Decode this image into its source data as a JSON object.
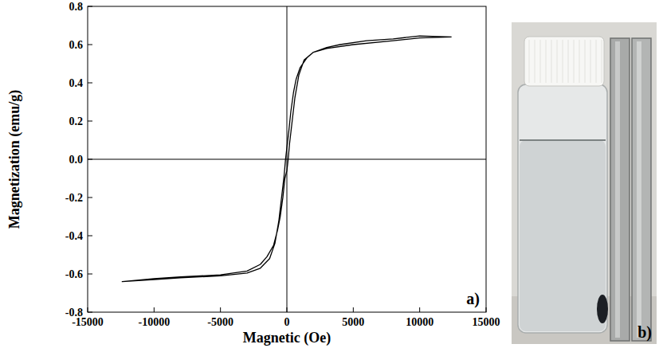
{
  "chart_data": {
    "type": "line",
    "x_label": "Magnetic (Oe)",
    "y_label": "Magnetization (emu/g)",
    "color": "#000000",
    "x": [
      12400,
      10000,
      8000,
      6000,
      4000,
      3000,
      2000,
      1500,
      1000,
      700,
      500,
      300,
      150,
      0,
      -100,
      -200,
      -400,
      -600,
      -900,
      -1300,
      -2000,
      -3000,
      -5000,
      -8000,
      -10000,
      -12400,
      -12400,
      -10000,
      -8000,
      -5000,
      -3000,
      -2000,
      -1500,
      -1000,
      -700,
      -500,
      -300,
      -150,
      0,
      100,
      200,
      400,
      600,
      900,
      1300,
      2000,
      3000,
      5000,
      8000,
      10000,
      12400
    ],
    "values": [
      0.64,
      0.645,
      0.63,
      0.62,
      0.6,
      0.585,
      0.56,
      0.53,
      0.48,
      0.42,
      0.35,
      0.25,
      0.15,
      0.06,
      0.0,
      -0.08,
      -0.2,
      -0.32,
      -0.44,
      -0.52,
      -0.57,
      -0.595,
      -0.61,
      -0.62,
      -0.63,
      -0.64,
      -0.64,
      -0.625,
      -0.615,
      -0.605,
      -0.585,
      -0.55,
      -0.51,
      -0.45,
      -0.37,
      -0.3,
      -0.2,
      -0.1,
      -0.06,
      0.0,
      0.08,
      0.2,
      0.32,
      0.44,
      0.52,
      0.56,
      0.58,
      0.6,
      0.62,
      0.635,
      0.64
    ],
    "xlim": [
      -15000,
      15000
    ],
    "xticks": [
      -15000,
      -10000,
      -5000,
      0,
      5000,
      10000,
      15000
    ],
    "ylim": [
      -0.8,
      0.8
    ],
    "yticks": [
      -0.8,
      -0.6,
      -0.4,
      -0.2,
      {
        "value": 0,
        "label": "0.0"
      },
      0.2,
      0.4,
      0.6,
      0.8
    ],
    "grid": false,
    "annotations": [
      "a)",
      "b)"
    ]
  }
}
